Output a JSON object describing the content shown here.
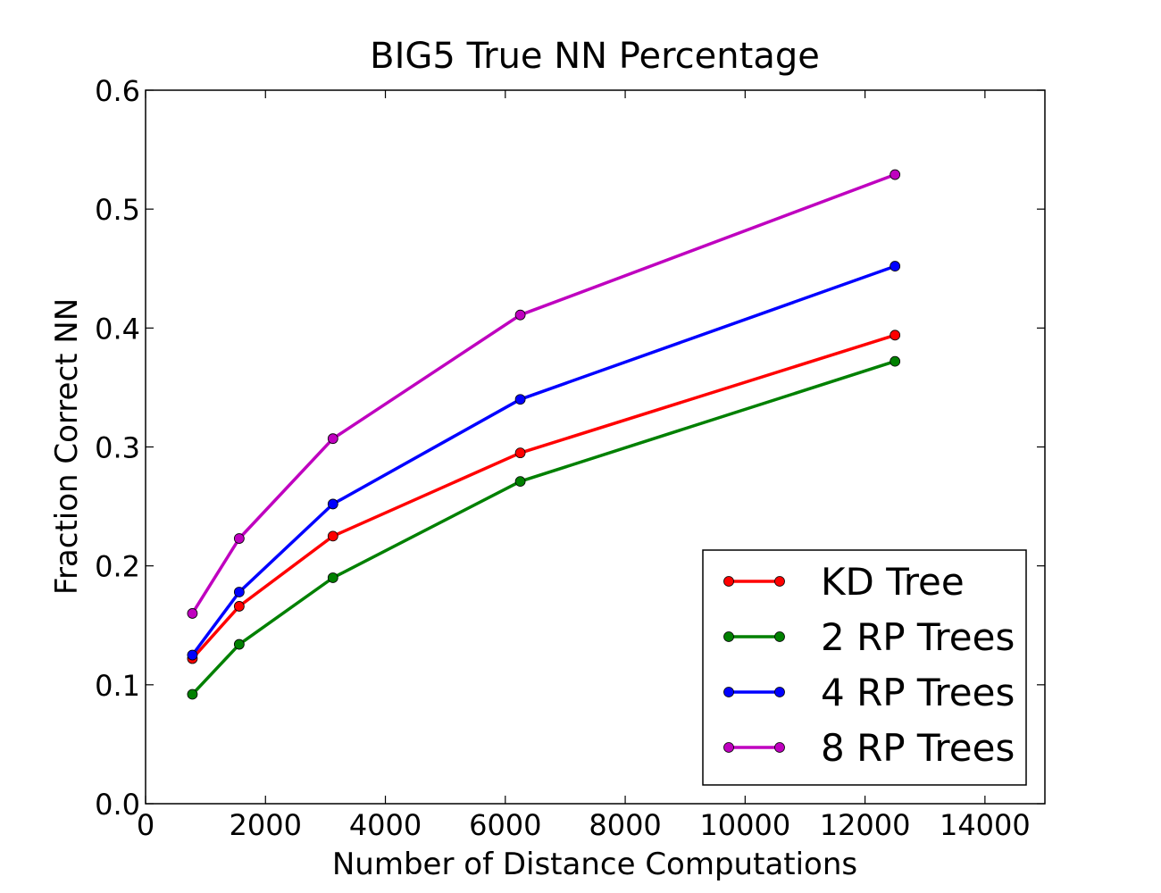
{
  "chart_data": {
    "type": "line",
    "title": "BIG5 True NN Percentage",
    "xlabel": "Number of Distance Computations",
    "ylabel": "Fraction Correct NN",
    "xlim": [
      0,
      15000
    ],
    "ylim": [
      0.0,
      0.6
    ],
    "xticks": [
      0,
      2000,
      4000,
      6000,
      8000,
      10000,
      12000,
      14000
    ],
    "xtick_labels": [
      "0",
      "2000",
      "4000",
      "6000",
      "8000",
      "10000",
      "12000",
      "14000"
    ],
    "yticks": [
      0.0,
      0.1,
      0.2,
      0.3,
      0.4,
      0.5,
      0.6
    ],
    "ytick_labels": [
      "0.0",
      "0.1",
      "0.2",
      "0.3",
      "0.4",
      "0.5",
      "0.6"
    ],
    "grid": false,
    "legend_position": "bottom-right",
    "x": [
      781,
      1562,
      3125,
      6250,
      12500
    ],
    "series": [
      {
        "name": "KD Tree",
        "color": "#ff0000",
        "values": [
          0.122,
          0.166,
          0.225,
          0.295,
          0.394
        ]
      },
      {
        "name": "2 RP Trees",
        "color": "#008000",
        "values": [
          0.092,
          0.134,
          0.19,
          0.271,
          0.372
        ]
      },
      {
        "name": "4 RP Trees",
        "color": "#0000ff",
        "values": [
          0.125,
          0.178,
          0.252,
          0.34,
          0.452
        ]
      },
      {
        "name": "8 RP Trees",
        "color": "#bf00bf",
        "values": [
          0.16,
          0.223,
          0.307,
          0.411,
          0.529
        ]
      }
    ]
  }
}
